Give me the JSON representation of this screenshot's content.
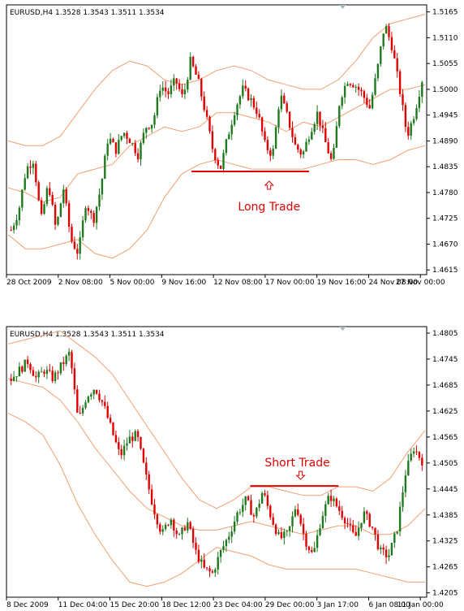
{
  "colors": {
    "bull": "#1f7a1f",
    "bear": "#e00000",
    "band": "#f0a070",
    "annotation": "#e00000",
    "frame": "#000000"
  },
  "chart_data": [
    {
      "type": "candlestick",
      "header": "EURUSD,H4  1.3528 1.3543 1.3511 1.3534",
      "x_ticks": [
        "28 Oct 2009",
        "2 Nov 08:00",
        "5 Nov 00:00",
        "9 Nov 16:00",
        "12 Nov 08:00",
        "17 Nov 00:00",
        "19 Nov 16:00",
        "24 Nov 08:00",
        "27 Nov 00:00"
      ],
      "y_ticks": [
        "1.5165",
        "1.5110",
        "1.5055",
        "1.5000",
        "1.4945",
        "1.4890",
        "1.4835",
        "1.4780",
        "1.4725",
        "1.4670",
        "1.4615"
      ],
      "ylim": [
        1.4605,
        1.518
      ],
      "close_path": [
        1.47,
        1.474,
        1.483,
        1.485,
        1.472,
        1.48,
        1.47,
        1.479,
        1.468,
        1.465,
        1.476,
        1.472,
        1.479,
        1.49,
        1.487,
        1.491,
        1.489,
        1.486,
        1.492,
        1.493,
        1.501,
        1.499,
        1.502,
        1.498,
        1.506,
        1.502,
        1.495,
        1.487,
        1.483,
        1.49,
        1.496,
        1.5,
        1.498,
        1.495,
        1.488,
        1.486,
        1.499,
        1.494,
        1.488,
        1.486,
        1.491,
        1.495,
        1.489,
        1.484,
        1.498,
        1.502,
        1.501,
        1.499,
        1.496,
        1.504,
        1.514,
        1.509,
        1.5,
        1.49,
        1.495,
        1.502
      ],
      "upper_band_path": [
        1.489,
        1.488,
        1.488,
        1.49,
        1.495,
        1.5,
        1.504,
        1.506,
        1.505,
        1.502,
        1.501,
        1.502,
        1.504,
        1.505,
        1.504,
        1.502,
        1.501,
        1.5,
        1.5,
        1.502,
        1.506,
        1.511,
        1.514,
        1.515,
        1.516
      ],
      "lower_band_path": [
        1.469,
        1.466,
        1.466,
        1.467,
        1.468,
        1.465,
        1.464,
        1.466,
        1.47,
        1.477,
        1.482,
        1.484,
        1.485,
        1.484,
        1.483,
        1.483,
        1.483,
        1.483,
        1.484,
        1.485,
        1.485,
        1.484,
        1.485,
        1.487,
        1.488
      ],
      "middle_band_path": [
        1.479,
        1.478,
        1.476,
        1.477,
        1.482,
        1.483,
        1.484,
        1.488,
        1.49,
        1.492,
        1.491,
        1.492,
        1.495,
        1.495,
        1.494,
        1.493,
        1.491,
        1.493,
        1.492,
        1.494,
        1.496,
        1.498,
        1.5,
        1.5,
        1.501
      ],
      "annotation": {
        "label": "Long Trade",
        "level": 1.4825,
        "x_from": 0.44,
        "x_to": 0.72,
        "arrow_x": 0.625
      }
    },
    {
      "type": "candlestick",
      "header": "EURUSD,H4  1.3528 1.3543 1.3511 1.3534",
      "x_ticks": [
        "8 Dec 2009",
        "11 Dec 04:00",
        "15 Dec 20:00",
        "18 Dec 12:00",
        "23 Dec 04:00",
        "29 Dec 00:00",
        "3 Jan 17:00",
        "6 Jan 08:00",
        "11 Jan 00:00"
      ],
      "y_ticks": [
        "1.4805",
        "1.4745",
        "1.4685",
        "1.4625",
        "1.4565",
        "1.4505",
        "1.4445",
        "1.4385",
        "1.4325",
        "1.4265",
        "1.4205"
      ],
      "ylim": [
        1.4195,
        1.482
      ],
      "close_path": [
        1.47,
        1.472,
        1.474,
        1.47,
        1.472,
        1.47,
        1.473,
        1.476,
        1.46,
        1.466,
        1.468,
        1.464,
        1.458,
        1.452,
        1.456,
        1.457,
        1.448,
        1.44,
        1.434,
        1.438,
        1.433,
        1.437,
        1.43,
        1.426,
        1.425,
        1.43,
        1.434,
        1.439,
        1.442,
        1.438,
        1.444,
        1.438,
        1.433,
        1.434,
        1.441,
        1.433,
        1.429,
        1.438,
        1.443,
        1.44,
        1.437,
        1.433,
        1.439,
        1.436,
        1.43,
        1.429,
        1.435,
        1.448,
        1.454,
        1.451
      ],
      "upper_band_path": [
        1.478,
        1.479,
        1.48,
        1.481,
        1.478,
        1.475,
        1.471,
        1.465,
        1.459,
        1.453,
        1.447,
        1.442,
        1.44,
        1.442,
        1.445,
        1.445,
        1.444,
        1.443,
        1.443,
        1.445,
        1.445,
        1.444,
        1.447,
        1.453,
        1.458
      ],
      "lower_band_path": [
        1.462,
        1.46,
        1.457,
        1.45,
        1.441,
        1.434,
        1.428,
        1.423,
        1.422,
        1.423,
        1.425,
        1.428,
        1.431,
        1.43,
        1.429,
        1.427,
        1.426,
        1.426,
        1.426,
        1.426,
        1.426,
        1.425,
        1.424,
        1.423,
        1.423
      ],
      "middle_band_path": [
        1.47,
        1.469,
        1.468,
        1.465,
        1.46,
        1.454,
        1.449,
        1.444,
        1.44,
        1.438,
        1.436,
        1.435,
        1.435,
        1.436,
        1.437,
        1.436,
        1.435,
        1.434,
        1.435,
        1.436,
        1.436,
        1.434,
        1.434,
        1.436,
        1.44
      ],
      "annotation": {
        "label": "Short Trade",
        "level": 1.4452,
        "x_from": 0.58,
        "x_to": 0.79,
        "arrow_x": 0.7
      }
    }
  ]
}
